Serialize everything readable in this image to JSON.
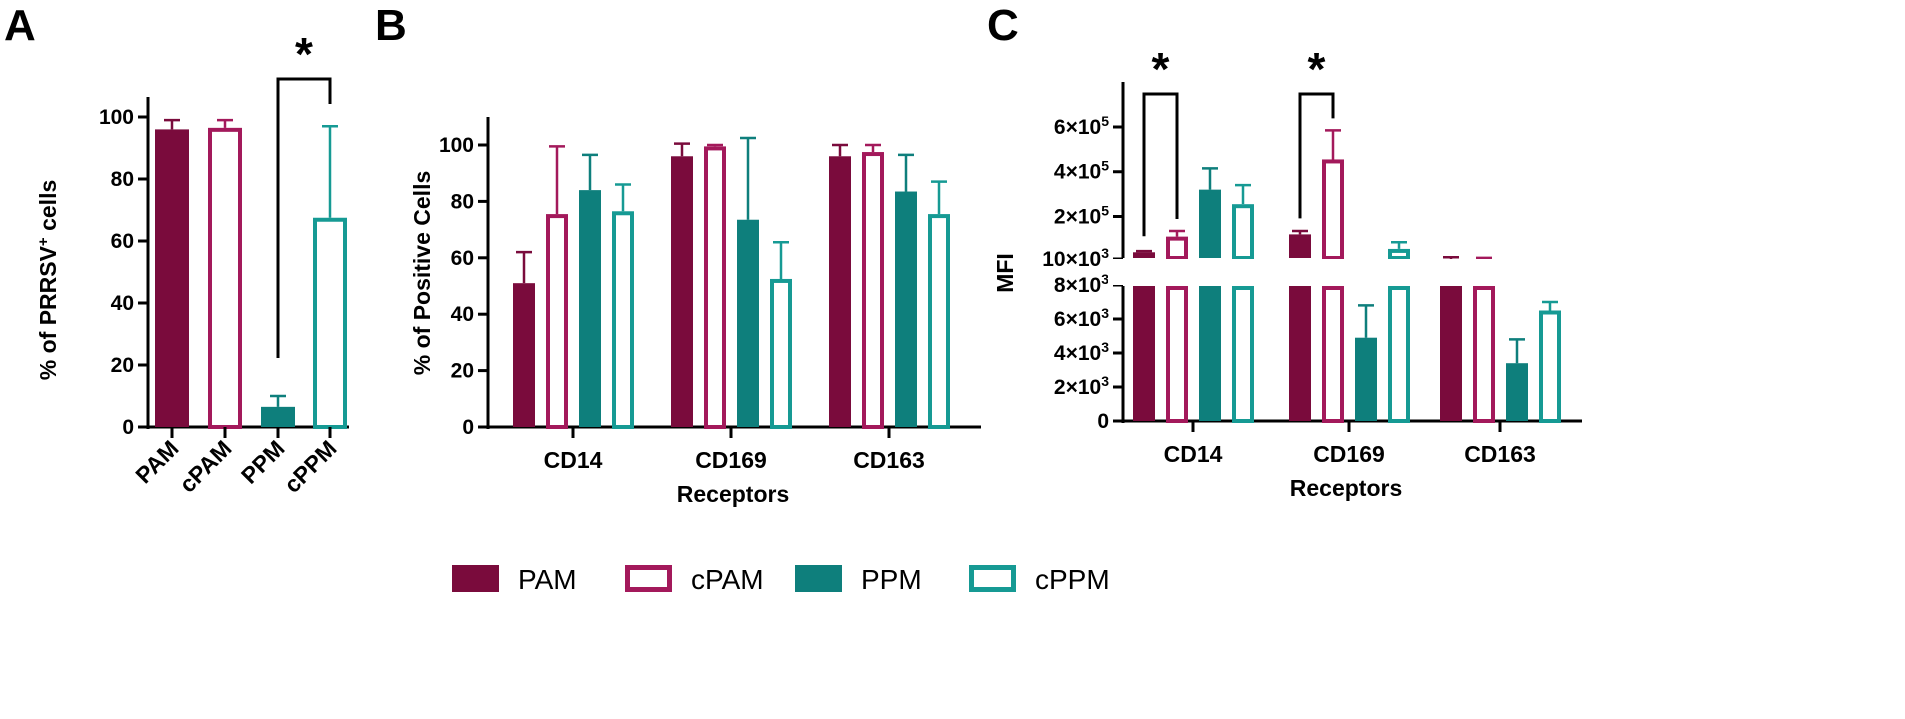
{
  "colors": {
    "PAM": "#7A0B3C",
    "cPAM": "#A3195B",
    "PPM": "#0E7F7C",
    "cPPM": "#169A94"
  },
  "legend": {
    "items": [
      {
        "name": "PAM",
        "filled": true
      },
      {
        "name": "cPAM",
        "filled": false
      },
      {
        "name": "PPM",
        "filled": true
      },
      {
        "name": "cPPM",
        "filled": false
      }
    ]
  },
  "chart_data": [
    {
      "panel": "A",
      "type": "bar",
      "ylabel_prefix": "% of PRRSV",
      "ylabel_sup": "+",
      "ylabel_suffix": " cells",
      "ylim": [
        0,
        100
      ],
      "yticks": [
        "0",
        "20",
        "40",
        "60",
        "80",
        "100"
      ],
      "yticks_values": [
        0,
        20,
        40,
        60,
        80,
        100
      ],
      "categories": [
        "PAM",
        "cPAM",
        "PPM",
        "cPPM"
      ],
      "values": [
        96,
        96.5,
        6.5,
        67.5
      ],
      "errors": [
        3,
        2.5,
        3.5,
        29.5
      ],
      "significance": [
        {
          "from": "PPM",
          "to": "cPPM",
          "label": "*"
        }
      ]
    },
    {
      "panel": "B",
      "type": "bar",
      "ylabel": "% of Positive Cells",
      "xlabel": "Receptors",
      "ylim": [
        0,
        110
      ],
      "yticks": [
        "0",
        "20",
        "40",
        "60",
        "80",
        "100"
      ],
      "yticks_values": [
        0,
        20,
        40,
        60,
        80,
        100
      ],
      "categories": [
        "CD14",
        "CD169",
        "CD163"
      ],
      "series": [
        {
          "name": "PAM",
          "values": [
            51,
            96,
            96
          ],
          "errors": [
            11,
            4.5,
            4
          ]
        },
        {
          "name": "cPAM",
          "values": [
            75.5,
            99.5,
            97.5
          ],
          "errors": [
            24,
            0.5,
            2.5
          ]
        },
        {
          "name": "PPM",
          "values": [
            84,
            73.5,
            83.5
          ],
          "errors": [
            12.5,
            29,
            13
          ]
        },
        {
          "name": "cPPM",
          "values": [
            76.5,
            52.5,
            75.5
          ],
          "errors": [
            9.5,
            13,
            11.5
          ]
        }
      ]
    },
    {
      "panel": "C",
      "type": "bar",
      "ylabel": "MFI",
      "xlabel": "Receptors",
      "scale_note": "broken y-axis: lower segment 0 to 9000, upper segment 10000 to 700000",
      "yticks_lower": [
        "0",
        "2×10",
        "4×10",
        "6×10",
        "8×10"
      ],
      "yticks_lower_exp": [
        "",
        "3",
        "3",
        "3",
        "3"
      ],
      "yticks_lower_values": [
        0,
        2000,
        4000,
        6000,
        8000
      ],
      "yticks_upper": [
        "10×10",
        "2×10",
        "4×10",
        "6×10"
      ],
      "yticks_upper_exp": [
        "3",
        "5",
        "5",
        "5"
      ],
      "yticks_upper_values": [
        10000,
        200000,
        400000,
        600000
      ],
      "categories": [
        "CD14",
        "CD169",
        "CD163"
      ],
      "series": [
        {
          "name": "PAM",
          "values": [
            40000,
            120000,
            10000
          ],
          "errors": [
            5000,
            15000,
            8000
          ]
        },
        {
          "name": "cPAM",
          "values": [
            110000,
            455000,
            10000
          ],
          "errors": [
            25000,
            130000,
            5000
          ]
        },
        {
          "name": "PPM",
          "values": [
            320000,
            4900,
            3400
          ],
          "errors": [
            95000,
            1900,
            1400
          ]
        },
        {
          "name": "cPPM",
          "values": [
            255000,
            55000,
            6500
          ],
          "errors": [
            85000,
            30000,
            500
          ]
        }
      ],
      "significance": [
        {
          "category": "CD14",
          "from": "PAM",
          "to": "cPAM",
          "label": "*"
        },
        {
          "category": "CD169",
          "from": "PAM",
          "to": "cPAM",
          "label": "*"
        }
      ]
    }
  ]
}
